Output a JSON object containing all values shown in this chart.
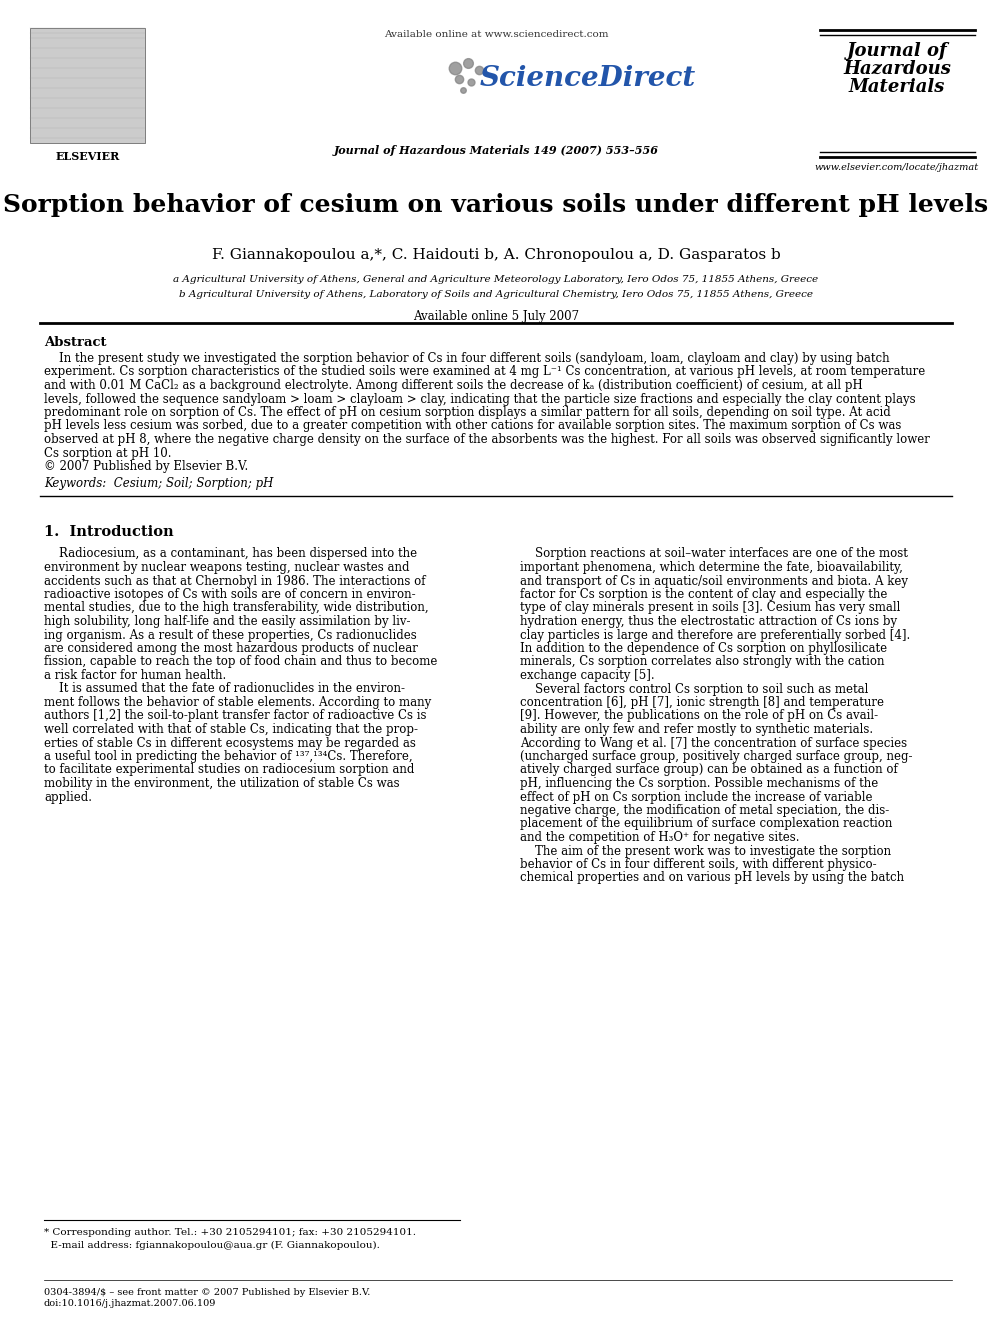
{
  "title": "Sorption behavior of cesium on various soils under different pH levels",
  "authors_display": "F. Giannakopoulou a,*, C. Haidouti b, A. Chronopoulou a, D. Gasparatos b",
  "affil_a": "a Agricultural University of Athens, General and Agriculture Meteorology Laboratory, Iero Odos 75, 11855 Athens, Greece",
  "affil_b": "b Agricultural University of Athens, Laboratory of Soils and Agricultural Chemistry, Iero Odos 75, 11855 Athens, Greece",
  "available_online": "Available online 5 July 2007",
  "abstract_title": "Abstract",
  "keywords_line": "Keywords:  Cesium; Soil; Sorption; pH",
  "section1_title": "1.  Introduction",
  "journal_name_line1": "Journal of",
  "journal_name_line2": "Hazardous",
  "journal_name_line3": "Materials",
  "journal_info": "Journal of Hazardous Materials 149 (2007) 553–556",
  "elsevier_url": "www.elsevier.com/locate/jhazmat",
  "sciencedirect_url": "Available online at www.sciencedirect.com",
  "footnote_line1": "* Corresponding author. Tel.: +30 2105294101; fax: +30 2105294101.",
  "footnote_line2": "  E-mail address: fgiannakopoulou@aua.gr (F. Giannakopoulou).",
  "issn": "0304-3894/$ – see front matter © 2007 Published by Elsevier B.V.",
  "doi": "doi:10.1016/j.jhazmat.2007.06.109",
  "abstract_lines": [
    "    In the present study we investigated the sorption behavior of Cs in four different soils (sandyloam, loam, clayloam and clay) by using batch",
    "experiment. Cs sorption characteristics of the studied soils were examined at 4 mg L⁻¹ Cs concentration, at various pH levels, at room temperature",
    "and with 0.01 M CaCl₂ as a background electrolyte. Among different soils the decrease of kₐ (distribution coefficient) of cesium, at all pH",
    "levels, followed the sequence sandyloam > loam > clayloam > clay, indicating that the particle size fractions and especially the clay content plays",
    "predominant role on sorption of Cs. The effect of pH on cesium sorption displays a similar pattern for all soils, depending on soil type. At acid",
    "pH levels less cesium was sorbed, due to a greater competition with other cations for available sorption sites. The maximum sorption of Cs was",
    "observed at pH 8, where the negative charge density on the surface of the absorbents was the highest. For all soils was observed significantly lower",
    "Cs sorption at pH 10.",
    "© 2007 Published by Elsevier B.V."
  ],
  "left_col_lines": [
    "    Radiocesium, as a contaminant, has been dispersed into the",
    "environment by nuclear weapons testing, nuclear wastes and",
    "accidents such as that at Chernobyl in 1986. The interactions of",
    "radioactive isotopes of Cs with soils are of concern in environ-",
    "mental studies, due to the high transferability, wide distribution,",
    "high solubility, long half-life and the easily assimilation by liv-",
    "ing organism. As a result of these properties, Cs radionuclides",
    "are considered among the most hazardous products of nuclear",
    "fission, capable to reach the top of food chain and thus to become",
    "a risk factor for human health.",
    "    It is assumed that the fate of radionuclides in the environ-",
    "ment follows the behavior of stable elements. According to many",
    "authors [1,2] the soil-to-plant transfer factor of radioactive Cs is",
    "well correlated with that of stable Cs, indicating that the prop-",
    "erties of stable Cs in different ecosystems may be regarded as",
    "a useful tool in predicting the behavior of ¹³⁷,¹³⁴Cs. Therefore,",
    "to facilitate experimental studies on radiocesium sorption and",
    "mobility in the environment, the utilization of stable Cs was",
    "applied."
  ],
  "right_col_lines": [
    "    Sorption reactions at soil–water interfaces are one of the most",
    "important phenomena, which determine the fate, bioavailability,",
    "and transport of Cs in aquatic/soil environments and biota. A key",
    "factor for Cs sorption is the content of clay and especially the",
    "type of clay minerals present in soils [3]. Cesium has very small",
    "hydration energy, thus the electrostatic attraction of Cs ions by",
    "clay particles is large and therefore are preferentially sorbed [4].",
    "In addition to the dependence of Cs sorption on phyllosilicate",
    "minerals, Cs sorption correlates also strongly with the cation",
    "exchange capacity [5].",
    "    Several factors control Cs sorption to soil such as metal",
    "concentration [6], pH [7], ionic strength [8] and temperature",
    "[9]. However, the publications on the role of pH on Cs avail-",
    "ability are only few and refer mostly to synthetic materials.",
    "According to Wang et al. [7] the concentration of surface species",
    "(uncharged surface group, positively charged surface group, neg-",
    "atively charged surface group) can be obtained as a function of",
    "pH, influencing the Cs sorption. Possible mechanisms of the",
    "effect of pH on Cs sorption include the increase of variable",
    "negative charge, the modification of metal speciation, the dis-",
    "placement of the equilibrium of surface complexation reaction",
    "and the competition of H₃O⁺ for negative sites.",
    "    The aim of the present work was to investigate the sorption",
    "behavior of Cs in four different soils, with different physico-",
    "chemical properties and on various pH levels by using the batch"
  ],
  "bg_color": "#ffffff"
}
